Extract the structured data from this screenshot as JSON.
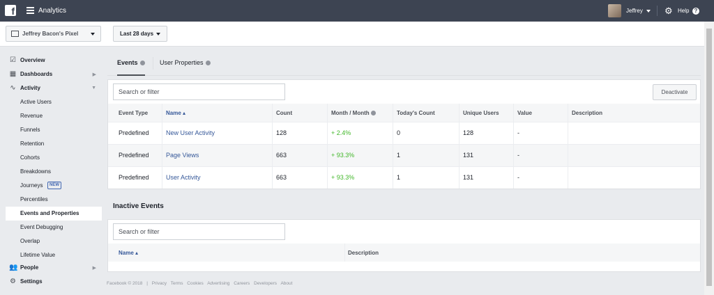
{
  "topbar": {
    "app_title": "Analytics",
    "user_name": "Jeffrey",
    "help_label": "Help",
    "icons": [
      "facebook-logo",
      "menu-icon",
      "avatar",
      "gear-icon",
      "help-icon"
    ]
  },
  "subheader": {
    "pixel_name": "Jeffrey Bacon's Pixel",
    "date_range": "Last 28 days"
  },
  "sidebar": {
    "items": [
      {
        "label": "Overview",
        "icon": "overview-icon"
      },
      {
        "label": "Dashboards",
        "icon": "dashboards-icon"
      },
      {
        "label": "Activity",
        "icon": "activity-icon"
      },
      {
        "label": "Active Users"
      },
      {
        "label": "Revenue"
      },
      {
        "label": "Funnels"
      },
      {
        "label": "Retention"
      },
      {
        "label": "Cohorts"
      },
      {
        "label": "Breakdowns"
      },
      {
        "label": "Journeys",
        "badge": "NEW"
      },
      {
        "label": "Percentiles"
      },
      {
        "label": "Events and Properties"
      },
      {
        "label": "Event Debugging"
      },
      {
        "label": "Overlap"
      },
      {
        "label": "Lifetime Value"
      },
      {
        "label": "People",
        "icon": "people-icon"
      },
      {
        "label": "Settings",
        "icon": "settings-icon"
      }
    ]
  },
  "tabs": [
    {
      "label": "Events"
    },
    {
      "label": "User Properties"
    }
  ],
  "events": {
    "search_placeholder": "Search or filter",
    "deactivate_label": "Deactivate",
    "columns": [
      "Event Type",
      "Name",
      "Count",
      "Month / Month",
      "Today's Count",
      "Unique Users",
      "Value",
      "Description"
    ],
    "rows": [
      {
        "type": "Predefined",
        "name": "New User Activity",
        "count": "128",
        "mom": "+ 2.4%",
        "today": "0",
        "unique": "128",
        "value": "-",
        "description": ""
      },
      {
        "type": "Predefined",
        "name": "Page Views",
        "count": "663",
        "mom": "+ 93.3%",
        "today": "1",
        "unique": "131",
        "value": "-",
        "description": ""
      },
      {
        "type": "Predefined",
        "name": "User Activity",
        "count": "663",
        "mom": "+ 93.3%",
        "today": "1",
        "unique": "131",
        "value": "-",
        "description": ""
      }
    ]
  },
  "inactive": {
    "title": "Inactive Events",
    "search_placeholder": "Search or filter",
    "columns": [
      "Name",
      "Description"
    ]
  },
  "footer": {
    "links": [
      "Facebook © 2018",
      "|",
      "Privacy",
      "Terms",
      "Cookies",
      "Advertising",
      "Careers",
      "Developers",
      "About"
    ]
  },
  "colors": {
    "topbar": "#3d4452",
    "link": "#365899",
    "positive": "#42b72a",
    "page_bg": "#e9ebee"
  }
}
